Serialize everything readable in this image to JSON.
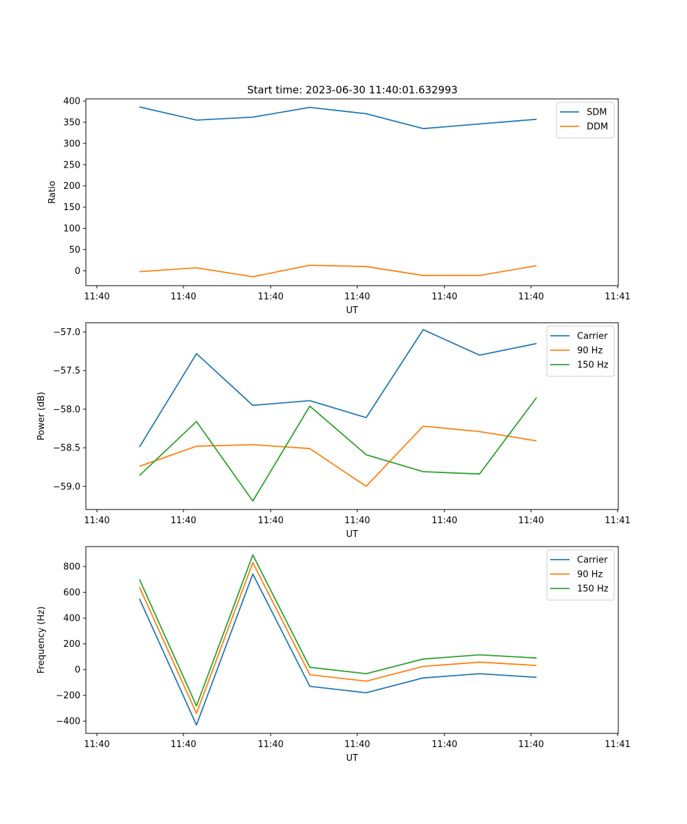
{
  "figure": {
    "title": "Start time: 2023-06-30 11:40:01.632993"
  },
  "chart_data": [
    {
      "type": "line",
      "title": "Start time: 2023-06-30 11:40:01.632993",
      "xlabel": "UT",
      "ylabel": "Ratio",
      "x_ticks": [
        "11:40",
        "11:40",
        "11:40",
        "11:40",
        "11:40",
        "11:40",
        "11:41"
      ],
      "yticks": [
        0,
        50,
        100,
        150,
        200,
        250,
        300,
        350,
        400
      ],
      "ylim": [
        -35,
        405
      ],
      "legend_position": "top-right",
      "series": [
        {
          "name": "SDM",
          "color": "#1f77b4",
          "values": [
            386,
            355,
            362,
            385,
            370,
            335,
            346,
            357
          ]
        },
        {
          "name": "DDM",
          "color": "#ff7f0e",
          "values": [
            -2,
            7,
            -14,
            13,
            10,
            -11,
            -11,
            12
          ]
        }
      ]
    },
    {
      "type": "line",
      "title": "",
      "xlabel": "UT",
      "ylabel": "Power (dB)",
      "x_ticks": [
        "11:40",
        "11:40",
        "11:40",
        "11:40",
        "11:40",
        "11:40",
        "11:41"
      ],
      "yticks": [
        -59.0,
        -58.5,
        -58.0,
        -57.5,
        -57.0
      ],
      "ytick_labels": [
        "−59.0",
        "−58.5",
        "−58.0",
        "−57.5",
        "−57.0"
      ],
      "ylim": [
        -59.3,
        -56.88
      ],
      "legend_position": "top-right",
      "series": [
        {
          "name": "Carrier",
          "color": "#1f77b4",
          "values": [
            -58.49,
            -57.28,
            -57.95,
            -57.89,
            -58.11,
            -56.97,
            -57.3,
            -57.15
          ]
        },
        {
          "name": "90 Hz",
          "color": "#ff7f0e",
          "values": [
            -58.74,
            -58.48,
            -58.46,
            -58.51,
            -59.0,
            -58.22,
            -58.29,
            -58.41
          ]
        },
        {
          "name": "150 Hz",
          "color": "#2ca02c",
          "values": [
            -58.86,
            -58.16,
            -59.19,
            -57.96,
            -58.59,
            -58.81,
            -58.84,
            -57.85
          ]
        }
      ]
    },
    {
      "type": "line",
      "title": "",
      "xlabel": "UT",
      "ylabel": "Frequency (Hz)",
      "x_ticks": [
        "11:40",
        "11:40",
        "11:40",
        "11:40",
        "11:40",
        "11:40",
        "11:41"
      ],
      "yticks": [
        -400,
        -200,
        0,
        200,
        400,
        600,
        800
      ],
      "ytick_labels": [
        "−400",
        "−200",
        "0",
        "200",
        "400",
        "600",
        "800"
      ],
      "ylim": [
        -495,
        955
      ],
      "legend_position": "top-right",
      "series": [
        {
          "name": "Carrier",
          "color": "#1f77b4",
          "values": [
            550,
            -430,
            742,
            -130,
            -180,
            -65,
            -32,
            -60
          ]
        },
        {
          "name": "90 Hz",
          "color": "#ff7f0e",
          "values": [
            640,
            -340,
            830,
            -40,
            -90,
            25,
            58,
            32
          ]
        },
        {
          "name": "150 Hz",
          "color": "#2ca02c",
          "values": [
            700,
            -282,
            890,
            18,
            -32,
            82,
            115,
            90
          ]
        }
      ]
    }
  ]
}
